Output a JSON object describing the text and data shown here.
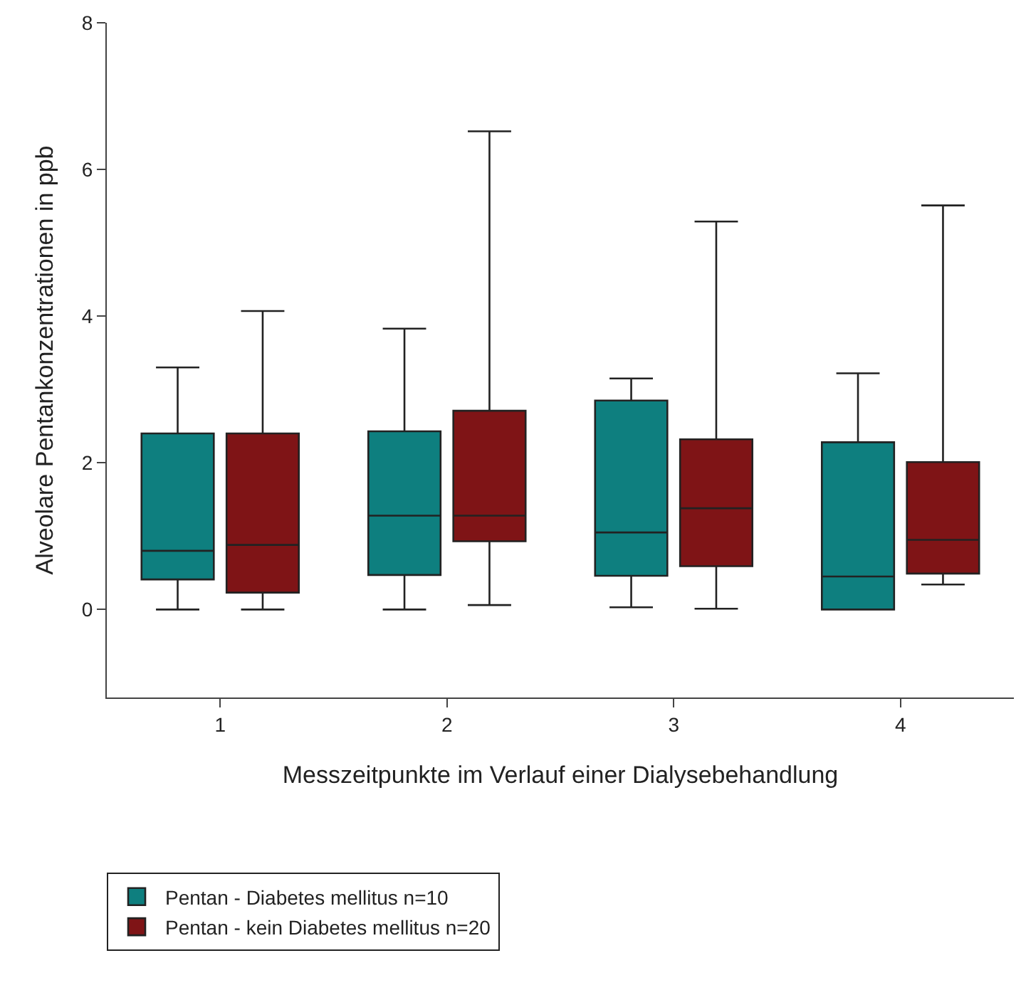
{
  "chart_data": {
    "type": "box",
    "xlabel": "Messzeitpunkte im Verlauf einer Dialysebehandlung",
    "ylabel": "Alveolare Pentankonzentrationen in ppb",
    "categories": [
      "1",
      "2",
      "3",
      "4"
    ],
    "ylim": [
      -1.2,
      8
    ],
    "yticks": [
      0,
      2,
      4,
      6,
      8
    ],
    "legend": "bottom",
    "series": [
      {
        "name": "Pentan - Diabetes mellitus n=10",
        "color": "#0e7f7f",
        "boxes": [
          {
            "low": 0,
            "q1": 0.41,
            "median": 0.8,
            "q3": 2.4,
            "high": 3.3
          },
          {
            "low": 0,
            "q1": 0.47,
            "median": 1.28,
            "q3": 2.43,
            "high": 3.83
          },
          {
            "low": 0.03,
            "q1": 0.46,
            "median": 1.05,
            "q3": 2.85,
            "high": 3.15
          },
          {
            "low": 0,
            "q1": 0,
            "median": 0.45,
            "q3": 2.28,
            "high": 3.22
          }
        ]
      },
      {
        "name": "Pentan - kein Diabetes mellitus n=20",
        "color": "#7f1416",
        "boxes": [
          {
            "low": 0,
            "q1": 0.23,
            "median": 0.88,
            "q3": 2.4,
            "high": 4.07
          },
          {
            "low": 0.06,
            "q1": 0.93,
            "median": 1.28,
            "q3": 2.71,
            "high": 6.52
          },
          {
            "low": 0.01,
            "q1": 0.59,
            "median": 1.38,
            "q3": 2.32,
            "high": 5.29
          },
          {
            "low": 0.34,
            "q1": 0.49,
            "median": 0.95,
            "q3": 2.01,
            "high": 5.51
          }
        ]
      }
    ]
  }
}
